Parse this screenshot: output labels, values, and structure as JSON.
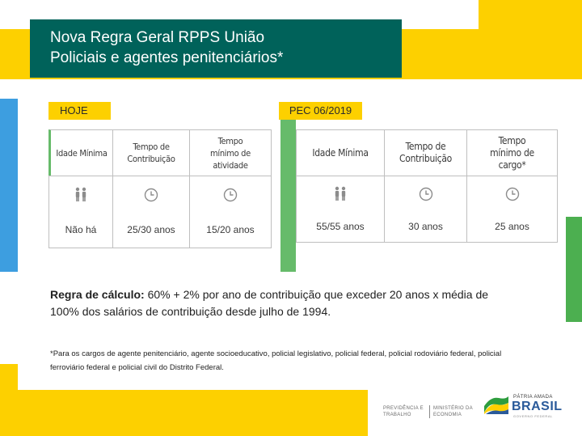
{
  "header": {
    "title_line1": "Nova Regra Geral RPPS União",
    "title_line2": "Policiais e agentes penitenciários*"
  },
  "tags": {
    "today": "HOJE",
    "pec": "PEC 06/2019"
  },
  "table_today": {
    "headers": [
      "Idade Mínima",
      "Tempo de Contribuição",
      "Tempo mínimo de atividade"
    ],
    "icons": [
      "people-icon",
      "clock-icon",
      "clock-icon"
    ],
    "values": [
      "Não há",
      "25/30 anos",
      "15/20 anos"
    ]
  },
  "table_pec": {
    "headers": [
      "Idade Mínima",
      "Tempo de Contribuição",
      "Tempo mínimo de cargo*"
    ],
    "icons": [
      "people-icon",
      "clock-icon",
      "clock-icon"
    ],
    "values": [
      "55/55 anos",
      "30 anos",
      "25 anos"
    ]
  },
  "rule": {
    "label": "Regra de cálculo:",
    "text": " 60% + 2% por ano de contribuição que exceder 20 anos x média de 100% dos  salários de contribuição desde julho de 1994."
  },
  "footnote": "*Para os cargos de agente penitenciário, agente socioeducativo, policial legislativo, policial federal,  policial rodoviário federal, policial ferroviário federal e policial civil do Distrito Federal.",
  "footer": {
    "ministry_left_1": "PREVIDÊNCIA E",
    "ministry_left_2": "TRABALHO",
    "ministry_right_1": "MINISTÉRIO DA",
    "ministry_right_2": "ECONOMIA",
    "brand_small": "PÁTRIA AMADA",
    "brand_big": "BRASIL",
    "brand_tiny": "GOVERNO FEDERAL"
  },
  "colors": {
    "title_bg": "#00625a",
    "accent_yellow": "#fdd000",
    "accent_green": "#66bb6a",
    "accent_blue": "#3d9ee0",
    "icon_gray": "#8c8c8c"
  }
}
